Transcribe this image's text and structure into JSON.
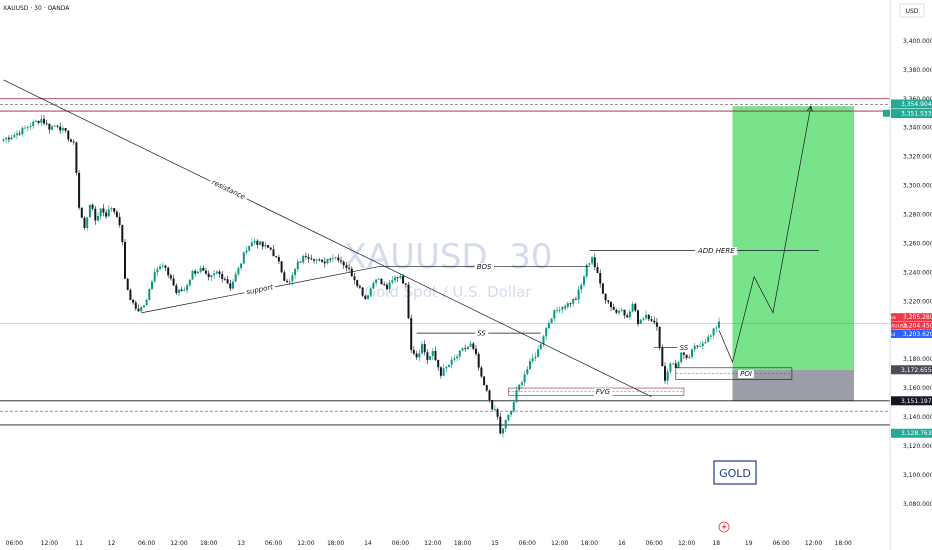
{
  "header": {
    "symbol_line": "XAUUSD · 30 · OANDA",
    "currency": "USD"
  },
  "watermark": {
    "symbol": "XAUUSD, 30",
    "description": "Gold Spot / U.S. Dollar"
  },
  "bottom_icon": "lightning-icon",
  "colors": {
    "up": "#089981",
    "down": "#131722",
    "target": "#4cd964",
    "stop": "#8a8d96",
    "ask": "#f23645",
    "bid": "#2962ff",
    "tp": "#22ab94"
  },
  "price_labels": {
    "tp": "3,354.904",
    "tp2": "3,351.533",
    "ask_tag": "Ask",
    "ask": "3,205.280",
    "last_tag": "XAUUSD",
    "last": "3,204.450",
    "bid_tag": "Bid",
    "bid": "3,203.620",
    "poi": "3,172.655",
    "stop": "3,151.197",
    "low_tag": "3,128.763"
  },
  "chart_data": {
    "type": "candlestick",
    "symbol": "XAUUSD",
    "timeframe": "30",
    "ylim": [
      3075,
      3420
    ],
    "y_ticks": [
      3080,
      3100,
      3120,
      3140,
      3160,
      3180,
      3200,
      3220,
      3240,
      3260,
      3280,
      3300,
      3320,
      3340,
      3360,
      3380,
      3400
    ],
    "y_tick_labels": [
      "3,080.000",
      "3,100.000",
      "3,120.000",
      "3,140.000",
      "3,160.000",
      "3,180.000",
      "3,200.000",
      "3,220.000",
      "3,240.000",
      "3,260.000",
      "3,280.000",
      "3,300.000",
      "3,320.000",
      "3,340.000",
      "3,360.000",
      "3,380.000",
      "3,400.000"
    ],
    "x_ticks": [
      {
        "bar": 4,
        "label": "06:00"
      },
      {
        "bar": 17,
        "label": "12:00"
      },
      {
        "bar": 28,
        "label": "11"
      },
      {
        "bar": 40,
        "label": "12"
      },
      {
        "bar": 53,
        "label": "06:00"
      },
      {
        "bar": 65,
        "label": "12:00"
      },
      {
        "bar": 76,
        "label": "18:00"
      },
      {
        "bar": 88,
        "label": "13"
      },
      {
        "bar": 100,
        "label": "06:00"
      },
      {
        "bar": 112,
        "label": "12:00"
      },
      {
        "bar": 123,
        "label": "18:00"
      },
      {
        "bar": 135,
        "label": "14"
      },
      {
        "bar": 147,
        "label": "06:00"
      },
      {
        "bar": 159,
        "label": "12:00"
      },
      {
        "bar": 170,
        "label": "18:00"
      },
      {
        "bar": 182,
        "label": "15"
      },
      {
        "bar": 194,
        "label": "06:00"
      },
      {
        "bar": 206,
        "label": "12:00"
      },
      {
        "bar": 217,
        "label": "18:00"
      },
      {
        "bar": 229,
        "label": "16"
      },
      {
        "bar": 241,
        "label": "06:00"
      },
      {
        "bar": 253,
        "label": "12:00"
      },
      {
        "bar": 264,
        "label": "18"
      },
      {
        "bar": 276,
        "label": "19"
      },
      {
        "bar": 288,
        "label": "06:00"
      },
      {
        "bar": 300,
        "label": "12:00"
      },
      {
        "bar": 311,
        "label": "18:00"
      }
    ],
    "anchors": [
      [
        0,
        3332
      ],
      [
        5,
        3336
      ],
      [
        10,
        3342
      ],
      [
        14,
        3346
      ],
      [
        17,
        3340
      ],
      [
        20,
        3342
      ],
      [
        23,
        3336
      ],
      [
        26,
        3328
      ],
      [
        27,
        3310
      ],
      [
        28,
        3285
      ],
      [
        30,
        3270
      ],
      [
        32,
        3288
      ],
      [
        34,
        3276
      ],
      [
        36,
        3284
      ],
      [
        38,
        3280
      ],
      [
        40,
        3285
      ],
      [
        42,
        3280
      ],
      [
        44,
        3262
      ],
      [
        45,
        3234
      ],
      [
        47,
        3222
      ],
      [
        50,
        3212
      ],
      [
        53,
        3222
      ],
      [
        56,
        3242
      ],
      [
        59,
        3244
      ],
      [
        62,
        3236
      ],
      [
        64,
        3226
      ],
      [
        67,
        3228
      ],
      [
        70,
        3240
      ],
      [
        73,
        3242
      ],
      [
        76,
        3235
      ],
      [
        79,
        3240
      ],
      [
        82,
        3236
      ],
      [
        84,
        3230
      ],
      [
        87,
        3242
      ],
      [
        90,
        3257
      ],
      [
        93,
        3262
      ],
      [
        96,
        3258
      ],
      [
        99,
        3256
      ],
      [
        102,
        3246
      ],
      [
        104,
        3236
      ],
      [
        106,
        3233
      ],
      [
        109,
        3246
      ],
      [
        112,
        3252
      ],
      [
        115,
        3250
      ],
      [
        118,
        3246
      ],
      [
        121,
        3251
      ],
      [
        124,
        3250
      ],
      [
        127,
        3244
      ],
      [
        130,
        3236
      ],
      [
        132,
        3229
      ],
      [
        134,
        3222
      ],
      [
        136,
        3229
      ],
      [
        138,
        3237
      ],
      [
        140,
        3232
      ],
      [
        142,
        3229
      ],
      [
        145,
        3236
      ],
      [
        147,
        3238
      ],
      [
        149,
        3230
      ],
      [
        150,
        3210
      ],
      [
        151,
        3188
      ],
      [
        153,
        3182
      ],
      [
        155,
        3190
      ],
      [
        157,
        3180
      ],
      [
        159,
        3184
      ],
      [
        162,
        3170
      ],
      [
        164,
        3174
      ],
      [
        167,
        3180
      ],
      [
        170,
        3186
      ],
      [
        173,
        3190
      ],
      [
        175,
        3182
      ],
      [
        177,
        3166
      ],
      [
        179,
        3157
      ],
      [
        181,
        3147
      ],
      [
        183,
        3140
      ],
      [
        184,
        3128
      ],
      [
        186,
        3137
      ],
      [
        188,
        3144
      ],
      [
        190,
        3157
      ],
      [
        193,
        3170
      ],
      [
        196,
        3180
      ],
      [
        198,
        3186
      ],
      [
        200,
        3197
      ],
      [
        203,
        3210
      ],
      [
        206,
        3216
      ],
      [
        209,
        3218
      ],
      [
        212,
        3222
      ],
      [
        214,
        3231
      ],
      [
        216,
        3244
      ],
      [
        218,
        3251
      ],
      [
        219,
        3244
      ],
      [
        221,
        3232
      ],
      [
        223,
        3222
      ],
      [
        225,
        3217
      ],
      [
        227,
        3212
      ],
      [
        229,
        3216
      ],
      [
        231,
        3208
      ],
      [
        233,
        3218
      ],
      [
        235,
        3206
      ],
      [
        238,
        3211
      ],
      [
        240,
        3208
      ],
      [
        242,
        3201
      ],
      [
        243,
        3190
      ],
      [
        244,
        3175
      ],
      [
        245,
        3166
      ],
      [
        247,
        3178
      ],
      [
        249,
        3174
      ],
      [
        251,
        3184
      ],
      [
        253,
        3179
      ],
      [
        256,
        3188
      ],
      [
        259,
        3192
      ],
      [
        262,
        3196
      ],
      [
        265,
        3206
      ]
    ],
    "levels": [
      {
        "price": 3360
      },
      {
        "price": 3351.5
      },
      {
        "price": 3356
      },
      {
        "price": 3151.2
      },
      {
        "price": 3144
      },
      {
        "price": 3134.5
      },
      {
        "price": 3204.5
      }
    ],
    "annotations": {
      "resistance": {
        "label": "resistance",
        "from": [
          0,
          3373
        ],
        "to": [
          240,
          3154
        ]
      },
      "support": {
        "label": "support",
        "from": [
          51,
          3212
        ],
        "to": [
          139,
          3244
        ]
      },
      "bos": {
        "label": "BOS",
        "from": [
          139,
          3244
        ],
        "to": [
          217,
          3244
        ]
      },
      "add_here": {
        "label": "ADD HERE",
        "from": [
          217,
          3255
        ],
        "to": [
          302,
          3255
        ]
      },
      "ss1": {
        "label": "SS",
        "from": [
          153,
          3198
        ],
        "to": [
          199,
          3198
        ]
      },
      "ss2": {
        "label": "SS",
        "from": [
          241,
          3188
        ],
        "to": [
          254,
          3188
        ]
      },
      "fvg": {
        "label": "FVG",
        "from": [
          187,
          3160
        ],
        "to": [
          252,
          3155
        ]
      },
      "poi": {
        "label": "POI",
        "from": [
          249,
          3174
        ],
        "to": [
          292,
          3166
        ]
      },
      "position": {
        "entry": 3172.655,
        "target": 3354.904,
        "stop": 3151.197,
        "from_bar": 270,
        "to_bar": 315
      },
      "projection": [
        [
          265,
          3200
        ],
        [
          270,
          3178
        ],
        [
          278,
          3237
        ],
        [
          285,
          3212
        ],
        [
          299,
          3355
        ]
      ]
    },
    "note_box": "GOLD"
  }
}
